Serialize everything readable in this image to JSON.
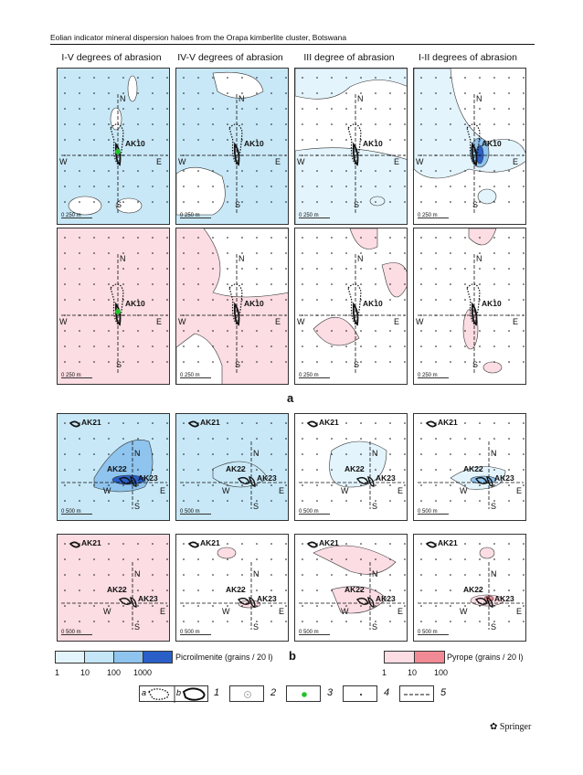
{
  "running_head": "Eolian indicator mineral dispersion haloes from the Orapa kimberlite cluster, Botswana",
  "column_titles": [
    "I-V degrees of abrasion",
    "IV-V degrees of abrasion",
    "III degree of abrasion",
    "I-II degrees of abrasion"
  ],
  "compass": {
    "n": "N",
    "s": "S",
    "e": "E",
    "w": "W"
  },
  "pipes": {
    "ak10": "AK10",
    "ak21": "AK21",
    "ak22": "AK22",
    "ak23": "AK23"
  },
  "scale_top": "250 m",
  "scale_bottom": "500 m",
  "scale_zero": "0",
  "fig_a": "a",
  "fig_b": "b",
  "legend": {
    "picro_label": "Picroilmenite (grains / 20 l)",
    "picro_ticks": [
      "1",
      "10",
      "100",
      "1000"
    ],
    "pyrope_label": "Pyrope (grains / 20 l)",
    "pyrope_ticks": [
      "1",
      "10",
      "100"
    ],
    "picro_colors": [
      "#e3f4fc",
      "#c4e6f7",
      "#8ec4ee",
      "#2a5fc7"
    ],
    "pyrope_colors": [
      "#fbdde3",
      "#f28a95"
    ],
    "symbols": {
      "a": "a",
      "b": "b",
      "n1": "1",
      "n2": "2",
      "n3": "3",
      "n4": "4",
      "n5": "5"
    }
  },
  "springer": "Springer"
}
